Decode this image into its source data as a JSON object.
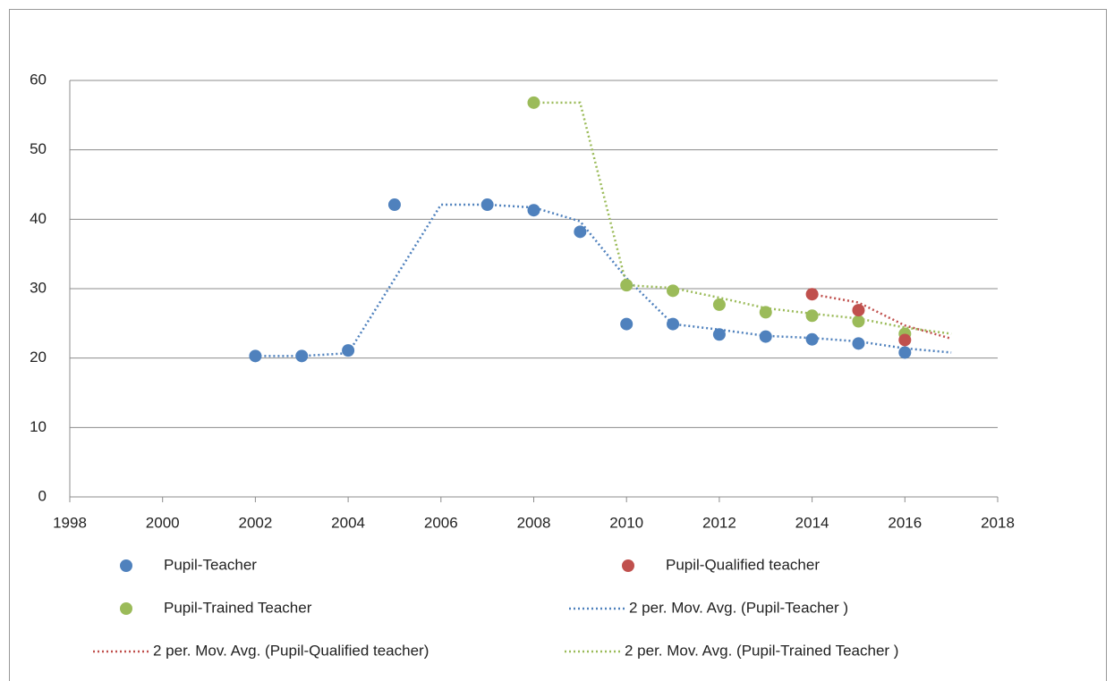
{
  "chart_data": {
    "type": "scatter",
    "xlim": [
      1998,
      2018
    ],
    "xticks": [
      1998,
      2000,
      2002,
      2004,
      2006,
      2008,
      2010,
      2012,
      2014,
      2016,
      2018
    ],
    "ylim": [
      0,
      60
    ],
    "yticks": [
      0,
      10,
      20,
      30,
      40,
      50,
      60
    ],
    "grid": true,
    "series": [
      {
        "name": "Pupil-Teacher",
        "type": "scatter",
        "color": "#4f81bd",
        "x": [
          2002,
          2003,
          2004,
          2005,
          2007,
          2008,
          2009,
          2010,
          2011,
          2012,
          2013,
          2014,
          2015,
          2016
        ],
        "values": [
          20.3,
          20.3,
          21.1,
          42.1,
          42.1,
          41.3,
          38.2,
          24.9,
          24.9,
          23.4,
          23.1,
          22.7,
          22.1,
          20.8
        ]
      },
      {
        "name": "Pupil-Qualified teacher",
        "type": "scatter",
        "color": "#c0504d",
        "x": [
          2014,
          2015,
          2016
        ],
        "values": [
          29.2,
          26.9,
          22.6
        ]
      },
      {
        "name": "Pupil-Trained Teacher",
        "type": "scatter",
        "color": "#9bbb59",
        "x": [
          2008,
          2010,
          2011,
          2012,
          2013,
          2014,
          2015,
          2016
        ],
        "values": [
          56.8,
          30.5,
          29.7,
          27.7,
          26.6,
          26.1,
          25.3,
          23.5
        ]
      },
      {
        "name": "2 per. Mov. Avg. (Pupil-Teacher )",
        "type": "line",
        "color": "#4f81bd",
        "x": [
          2002,
          2003,
          2004,
          2006,
          2007,
          2008,
          2009,
          2010,
          2011,
          2012,
          2013,
          2014,
          2015,
          2016,
          2017
        ],
        "values": [
          20.3,
          20.3,
          20.7,
          42.1,
          42.1,
          41.7,
          39.7,
          31.5,
          24.9,
          24.1,
          23.2,
          22.9,
          22.4,
          21.4,
          20.8
        ]
      },
      {
        "name": "2 per. Mov. Avg. (Pupil-Qualified teacher)",
        "type": "line",
        "color": "#c0504d",
        "x": [
          2014,
          2015,
          2016,
          2017
        ],
        "values": [
          29.2,
          28.0,
          24.7,
          22.8
        ]
      },
      {
        "name": "2 per. Mov. Avg. (Pupil-Trained Teacher )",
        "type": "line",
        "color": "#9bbb59",
        "x": [
          2008,
          2009,
          2010,
          2011,
          2012,
          2013,
          2014,
          2015,
          2016,
          2017
        ],
        "values": [
          56.8,
          56.8,
          30.5,
          30.1,
          28.7,
          27.2,
          26.4,
          25.7,
          24.4,
          23.5
        ]
      }
    ]
  }
}
